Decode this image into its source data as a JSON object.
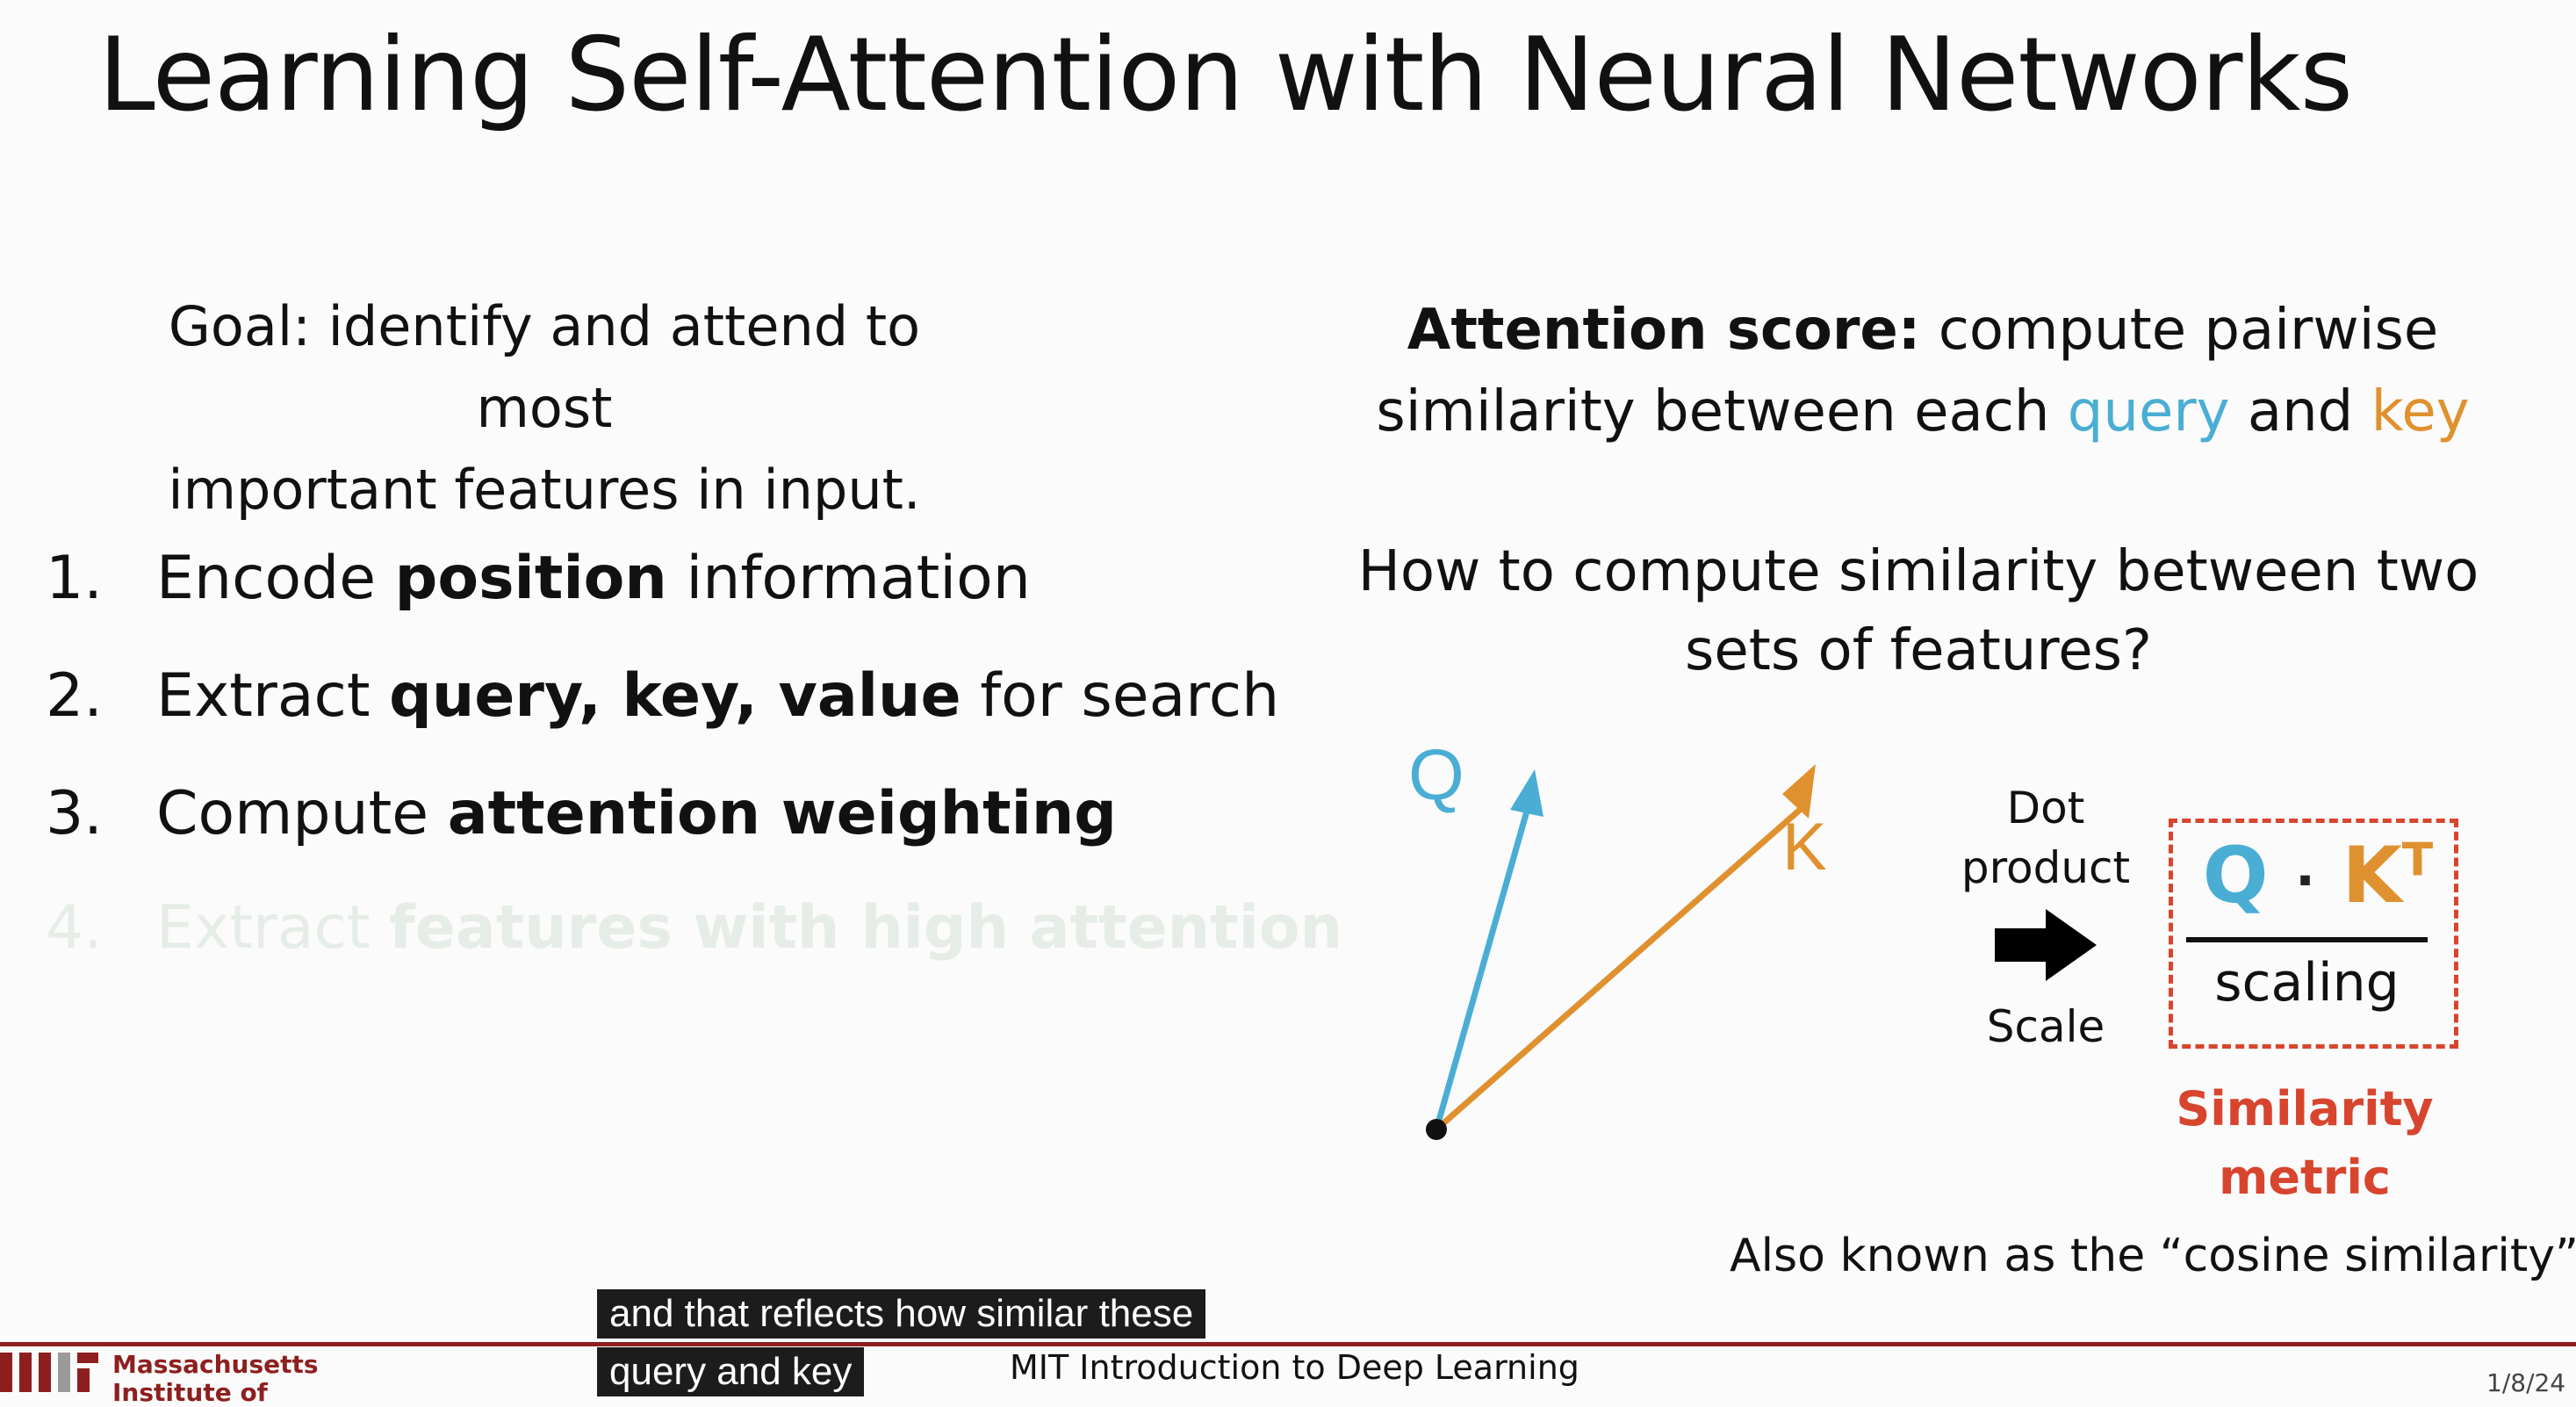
{
  "slide": {
    "title": "Learning Self-Attention with Neural Networks",
    "goal_line1": "Goal: identify and attend to most",
    "goal_line2": "important features in input.",
    "steps": [
      {
        "num": "1.",
        "pre": "Encode ",
        "bold": "position",
        "post": " information"
      },
      {
        "num": "2.",
        "pre": "Extract ",
        "bold": "query, key, value",
        "post": " for search"
      },
      {
        "num": "3.",
        "pre": "Compute ",
        "bold": "attention weighting",
        "post": ""
      },
      {
        "num": "4.",
        "pre": "Extract ",
        "bold": "features with high attention",
        "post": ""
      }
    ],
    "attention_score": {
      "bold": "Attention score:",
      "text1": "compute pairwise",
      "text2": "similarity between each",
      "query": "query",
      "and": "and",
      "key": "key"
    },
    "howto_line1": "How to compute similarity between two",
    "howto_line2": "sets of features?",
    "diagram": {
      "q_label": "Q",
      "k_label": "K",
      "dot_label_line1": "Dot",
      "dot_label_line2": "product",
      "scale_label": "Scale",
      "numerator_q": "Q",
      "numerator_dot": "·",
      "numerator_k": "K",
      "numerator_sup": "T",
      "denominator": "scaling",
      "metric_line1": "Similarity",
      "metric_line2": "metric",
      "also_known": "Also known as the “cosine similarity”"
    },
    "colors": {
      "query": "#4aaed4",
      "key": "#e0912f",
      "metric": "#d8452e",
      "mit_red": "#8e1f1f"
    }
  },
  "captions": {
    "line1": "and that reflects how similar these",
    "line2": "query and key"
  },
  "footer": {
    "course": "MIT Introduction to Deep Learning",
    "date": "1/8/24",
    "institution_line1": "Massachusetts",
    "institution_line2": "Institute of"
  }
}
